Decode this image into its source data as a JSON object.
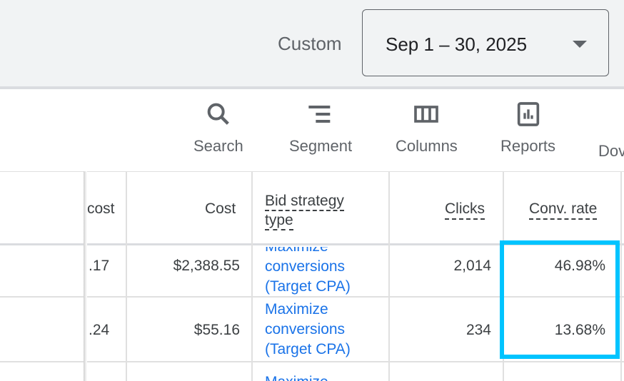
{
  "header": {
    "range_label": "Custom",
    "date_range": "Sep 1 – 30, 2025"
  },
  "toolbar": [
    {
      "label": "Search",
      "icon": "search-icon"
    },
    {
      "label": "Segment",
      "icon": "segment-icon"
    },
    {
      "label": "Columns",
      "icon": "columns-icon"
    },
    {
      "label": "Reports",
      "icon": "reports-icon"
    },
    {
      "label": "Dov",
      "icon": "download-icon"
    }
  ],
  "table": {
    "columns": [
      "cost",
      "Cost",
      "Bid strategy type",
      "Clicks",
      "Conv. rate"
    ],
    "bid_strategy_line1": "Bid strategy",
    "bid_strategy_line2": "type",
    "rows": [
      {
        "avg_cost": ".17",
        "cost": "$2,388.55",
        "bid_line1": "Maximize",
        "bid_line2": "conversions",
        "bid_line3": "(Target CPA)",
        "clicks": "2,014",
        "conv_rate": "46.98%"
      },
      {
        "avg_cost": ".24",
        "cost": "$55.16",
        "bid_line1": "Maximize",
        "bid_line2": "conversions",
        "bid_line3": "(Target CPA)",
        "clicks": "234",
        "conv_rate": "13.68%"
      },
      {
        "bid_line1": "Maximize"
      }
    ]
  },
  "highlight_color": "#00c4ff"
}
